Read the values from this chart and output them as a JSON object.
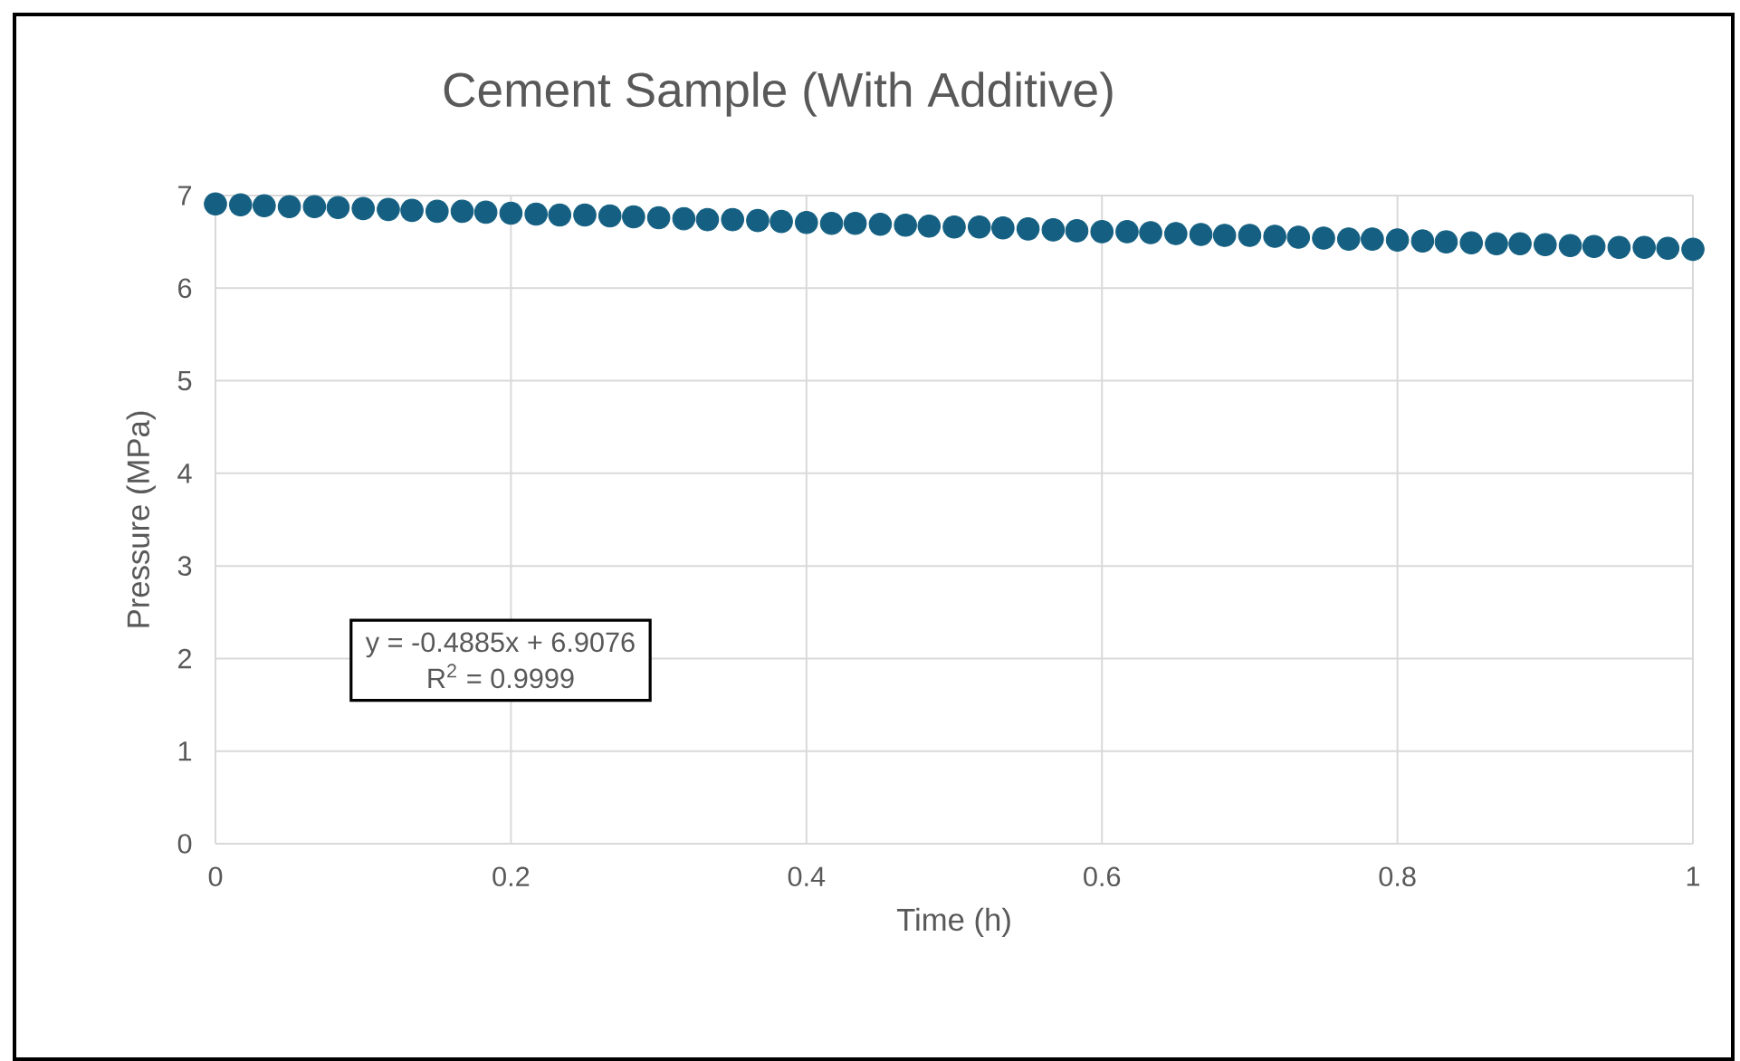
{
  "chart_data": {
    "type": "scatter",
    "title": "Cement Sample (With Additive)",
    "xlabel": "Time (h)",
    "ylabel": "Pressure (MPa)",
    "x": [
      0,
      0.017,
      0.033,
      0.05,
      0.067,
      0.083,
      0.1,
      0.117,
      0.133,
      0.15,
      0.167,
      0.183,
      0.2,
      0.217,
      0.233,
      0.25,
      0.267,
      0.283,
      0.3,
      0.317,
      0.333,
      0.35,
      0.367,
      0.383,
      0.4,
      0.417,
      0.433,
      0.45,
      0.467,
      0.483,
      0.5,
      0.517,
      0.533,
      0.55,
      0.567,
      0.583,
      0.6,
      0.617,
      0.633,
      0.65,
      0.667,
      0.683,
      0.7,
      0.717,
      0.733,
      0.75,
      0.767,
      0.783,
      0.8,
      0.817,
      0.833,
      0.85,
      0.867,
      0.883,
      0.9,
      0.917,
      0.933,
      0.95,
      0.967,
      0.983,
      1
    ],
    "series": [
      {
        "color": "#156082",
        "values": [
          6.91,
          6.9,
          6.89,
          6.88,
          6.88,
          6.87,
          6.86,
          6.85,
          6.84,
          6.83,
          6.83,
          6.82,
          6.81,
          6.8,
          6.79,
          6.79,
          6.78,
          6.77,
          6.76,
          6.75,
          6.74,
          6.74,
          6.73,
          6.72,
          6.71,
          6.7,
          6.7,
          6.69,
          6.68,
          6.67,
          6.66,
          6.66,
          6.65,
          6.64,
          6.63,
          6.62,
          6.61,
          6.61,
          6.6,
          6.59,
          6.58,
          6.57,
          6.57,
          6.56,
          6.55,
          6.54,
          6.53,
          6.53,
          6.52,
          6.51,
          6.5,
          6.49,
          6.48,
          6.48,
          6.47,
          6.46,
          6.45,
          6.44,
          6.44,
          6.43,
          6.42
        ]
      }
    ],
    "xlim": [
      0,
      1
    ],
    "xticks": [
      0,
      0.2,
      0.4,
      0.6,
      0.8,
      1
    ],
    "ylim": [
      0,
      7
    ],
    "yticks": [
      0,
      1,
      2,
      3,
      4,
      5,
      6,
      7
    ],
    "grid": true,
    "marker": "circle",
    "annotations": [
      "y = -0.4885x + 6.9076",
      "R$^{2}$ = 0.9999"
    ]
  }
}
